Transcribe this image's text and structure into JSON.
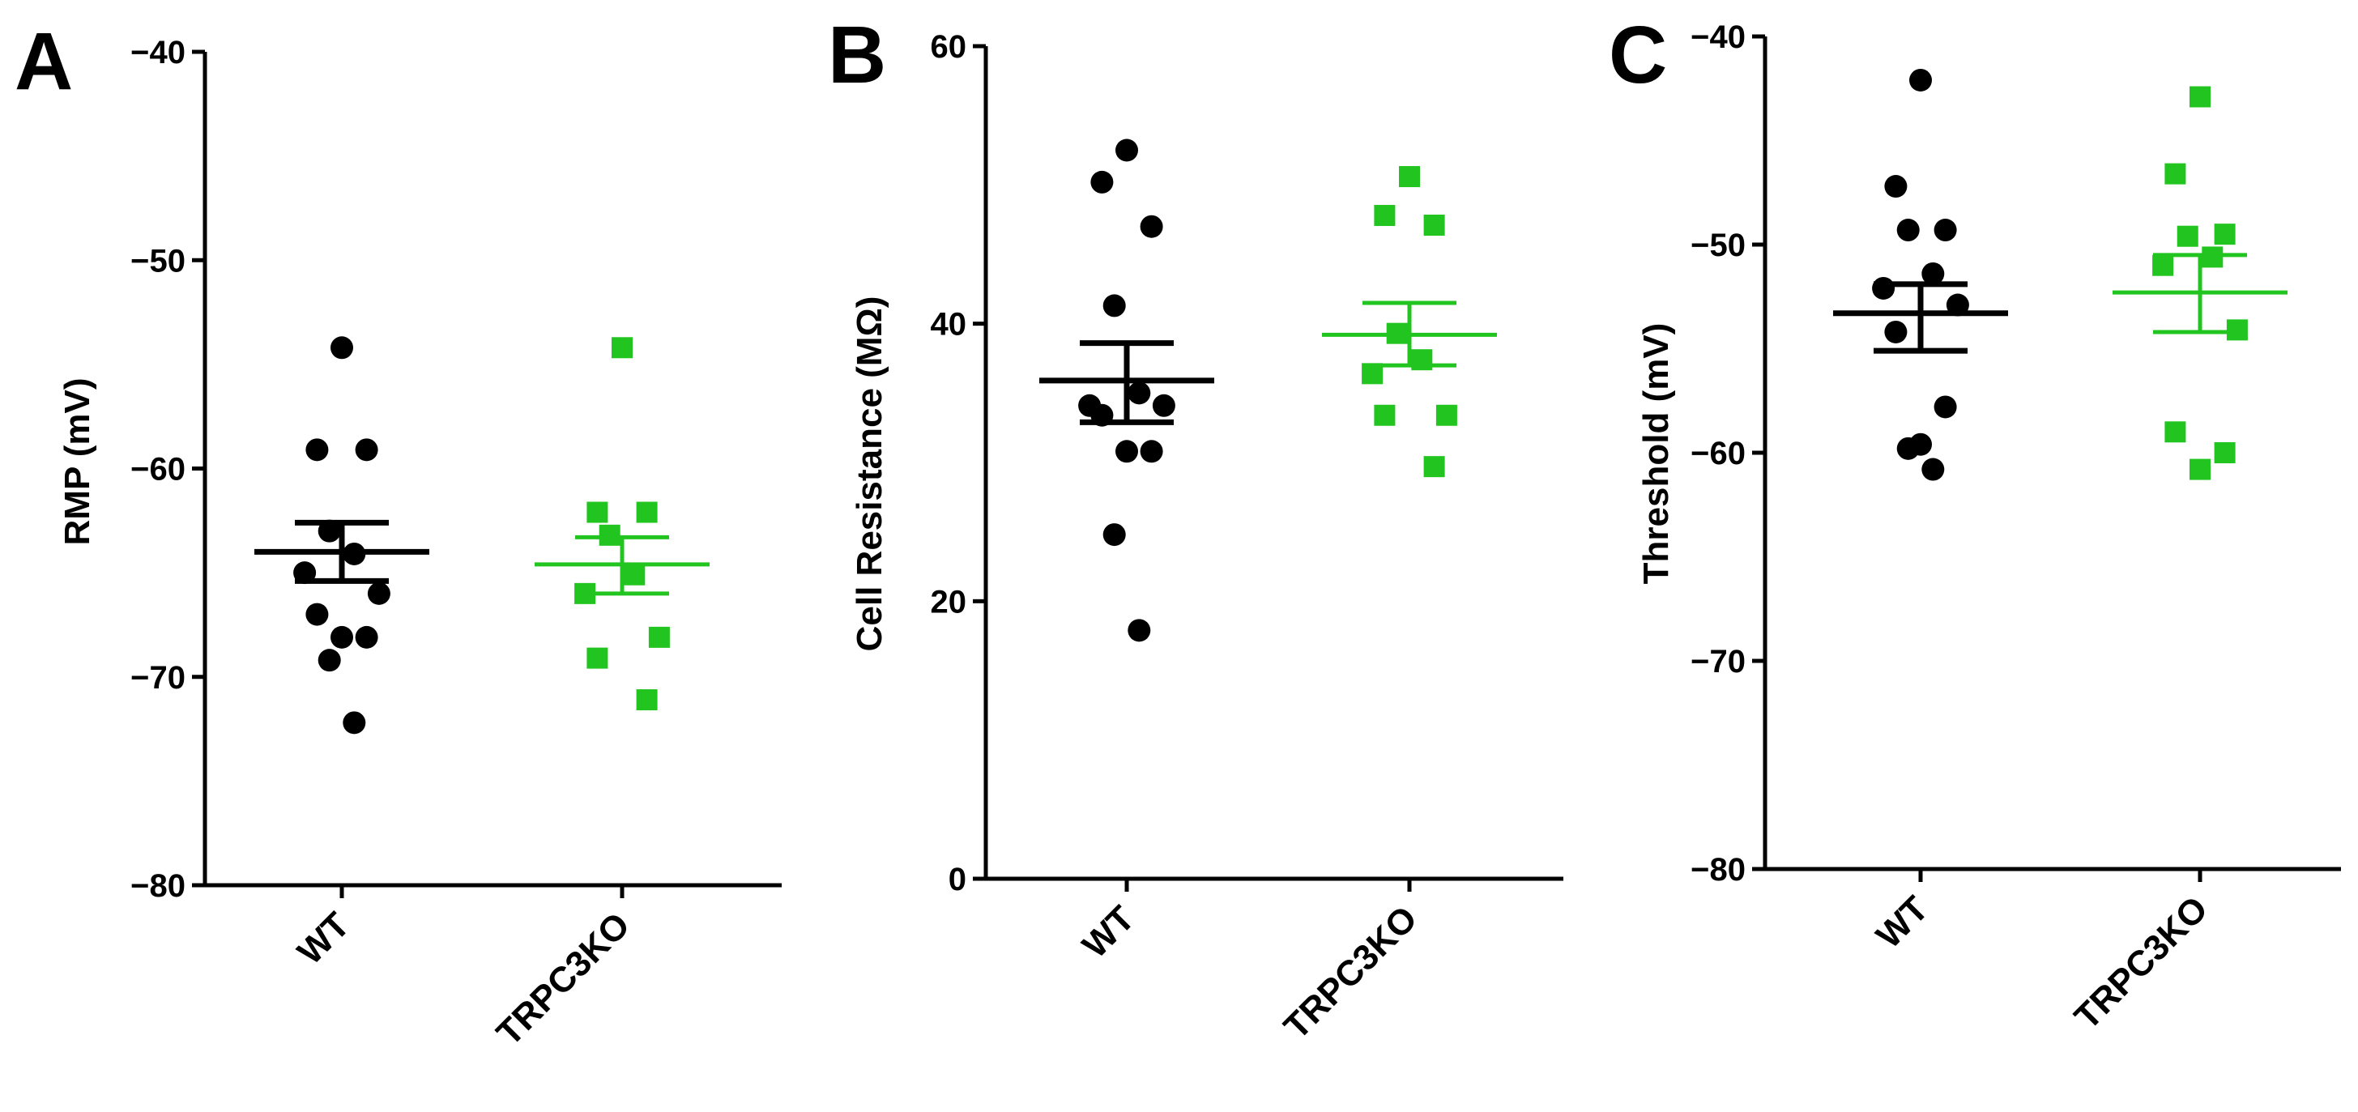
{
  "colors": {
    "wt": "#000000",
    "ko": "#22c41f"
  },
  "chart_data": [
    {
      "type": "scatter",
      "panel": "A",
      "ylabel": "RMP (mV)",
      "xlabel": "",
      "ylim": [
        -80,
        -40
      ],
      "yticks": [
        -80,
        -70,
        -60,
        -50,
        -40
      ],
      "ytick_labels": [
        "−80",
        "−70",
        "−60",
        "−50",
        "−40"
      ],
      "categories": [
        "WT",
        "TRPC3KO"
      ],
      "series": [
        {
          "name": "WT",
          "marker": "circle",
          "values": [
            -54.2,
            -59.1,
            -59.1,
            -63.0,
            -64.1,
            -65.0,
            -66.0,
            -67.0,
            -68.1,
            -68.1,
            -69.2,
            -72.2
          ],
          "mean": -64.0,
          "sem_low": -65.4,
          "sem_high": -62.6
        },
        {
          "name": "TRPC3KO",
          "marker": "square",
          "values": [
            -54.2,
            -62.1,
            -62.1,
            -63.2,
            -65.1,
            -66.0,
            -68.1,
            -69.1,
            -71.1
          ],
          "mean": -64.6,
          "sem_low": -66.0,
          "sem_high": -63.3
        }
      ]
    },
    {
      "type": "scatter",
      "panel": "B",
      "ylabel": "Cell Resistance (MΩ)",
      "xlabel": "",
      "ylim": [
        0,
        60
      ],
      "yticks": [
        0,
        20,
        40,
        60
      ],
      "ytick_labels": [
        "0",
        "20",
        "40",
        "60"
      ],
      "categories": [
        "WT",
        "TRPC3KO"
      ],
      "series": [
        {
          "name": "WT",
          "marker": "circle",
          "values": [
            52.5,
            50.2,
            47.0,
            41.3,
            35.0,
            34.1,
            34.1,
            33.4,
            30.8,
            30.8,
            24.8,
            17.9
          ],
          "mean": 35.9,
          "sem_low": 32.9,
          "sem_high": 38.6
        },
        {
          "name": "TRPC3KO",
          "marker": "square",
          "values": [
            50.6,
            47.8,
            47.1,
            39.3,
            37.4,
            36.4,
            33.4,
            33.4,
            29.7
          ],
          "mean": 39.2,
          "sem_low": 37.0,
          "sem_high": 41.5
        }
      ]
    },
    {
      "type": "scatter",
      "panel": "C",
      "ylabel": "Threshold (mV)",
      "xlabel": "",
      "ylim": [
        -80,
        -40
      ],
      "yticks": [
        -80,
        -70,
        -60,
        -50,
        -40
      ],
      "ytick_labels": [
        "−80",
        "−70",
        "−60",
        "−50",
        "−40"
      ],
      "categories": [
        "WT",
        "TRPC3KO"
      ],
      "series": [
        {
          "name": "WT",
          "marker": "circle",
          "values": [
            -42.1,
            -47.2,
            -49.3,
            -49.3,
            -51.4,
            -52.1,
            -52.9,
            -54.2,
            -57.8,
            -59.6,
            -59.8,
            -60.8
          ],
          "mean": -53.3,
          "sem_low": -55.1,
          "sem_high": -51.9
        },
        {
          "name": "TRPC3KO",
          "marker": "square",
          "values": [
            -42.9,
            -46.6,
            -49.5,
            -49.6,
            -50.6,
            -51.0,
            -54.1,
            -59.0,
            -60.0,
            -60.8
          ],
          "mean": -52.3,
          "sem_low": -54.2,
          "sem_high": -50.5
        }
      ]
    }
  ]
}
